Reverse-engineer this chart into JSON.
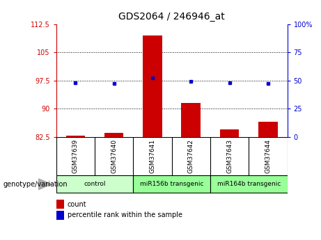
{
  "title": "GDS2064 / 246946_at",
  "samples": [
    "GSM37639",
    "GSM37640",
    "GSM37641",
    "GSM37642",
    "GSM37643",
    "GSM37644"
  ],
  "count_values": [
    82.8,
    83.5,
    109.5,
    91.5,
    84.5,
    86.5
  ],
  "percentile_values": [
    48,
    47,
    52,
    49,
    48,
    47
  ],
  "bar_bottom": 82.5,
  "ylim_left": [
    82.5,
    112.5
  ],
  "ylim_right": [
    0,
    100
  ],
  "yticks_left": [
    82.5,
    90,
    97.5,
    105,
    112.5
  ],
  "yticks_right": [
    0,
    25,
    50,
    75,
    100
  ],
  "ytick_labels_left": [
    "82.5",
    "90",
    "97.5",
    "105",
    "112.5"
  ],
  "ytick_labels_right": [
    "0",
    "25",
    "50",
    "75",
    "100%"
  ],
  "bar_color": "#cc0000",
  "dot_color": "#0000cc",
  "bg_color": "#ffffff",
  "left_tick_color": "#cc0000",
  "right_tick_color": "#0000cc",
  "sample_bg_color": "#c8c8c8",
  "group_colors": [
    "#ccffcc",
    "#99ff99",
    "#99ff99"
  ],
  "groups": [
    {
      "label": "control",
      "start": 0,
      "end": 1
    },
    {
      "label": "miR156b transgenic",
      "start": 2,
      "end": 3
    },
    {
      "label": "miR164b transgenic",
      "start": 4,
      "end": 5
    }
  ],
  "legend_items": [
    {
      "label": "count",
      "color": "#cc0000"
    },
    {
      "label": "percentile rank within the sample",
      "color": "#0000cc"
    }
  ]
}
